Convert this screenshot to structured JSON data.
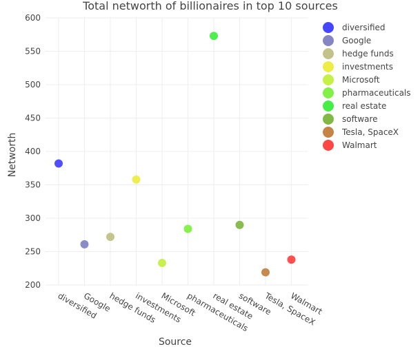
{
  "chart_data": {
    "type": "scatter",
    "title": "Total networth of billionaires in top 10 sources",
    "xlabel": "Source",
    "ylabel": "Networth",
    "ylim": [
      200,
      600
    ],
    "yticks": [
      200,
      250,
      300,
      350,
      400,
      450,
      500,
      550,
      600
    ],
    "grid": true,
    "legend_position": "top-right",
    "categories": [
      "diversified",
      "Google",
      "hedge funds",
      "investments",
      "Microsoft",
      "pharmaceuticals",
      "real estate",
      "software",
      "Tesla, SpaceX",
      "Walmart"
    ],
    "series": [
      {
        "name": "diversified",
        "x": "diversified",
        "y": 382,
        "color": "#4646ff"
      },
      {
        "name": "Google",
        "x": "Google",
        "y": 261,
        "color": "#8585c4"
      },
      {
        "name": "hedge funds",
        "x": "hedge funds",
        "y": 272,
        "color": "#c2c28a"
      },
      {
        "name": "investments",
        "x": "investments",
        "y": 358,
        "color": "#eded46"
      },
      {
        "name": "Microsoft",
        "x": "Microsoft",
        "y": 233,
        "color": "#c5f046"
      },
      {
        "name": "pharmaceuticals",
        "x": "pharmaceuticals",
        "y": 284,
        "color": "#82f046"
      },
      {
        "name": "real estate",
        "x": "real estate",
        "y": 573,
        "color": "#46ed46"
      },
      {
        "name": "software",
        "x": "software",
        "y": 290,
        "color": "#82b846"
      },
      {
        "name": "Tesla, SpaceX",
        "x": "Tesla, SpaceX",
        "y": 219,
        "color": "#c48446"
      },
      {
        "name": "Walmart",
        "x": "Walmart",
        "y": 238,
        "color": "#ff4646"
      }
    ]
  }
}
